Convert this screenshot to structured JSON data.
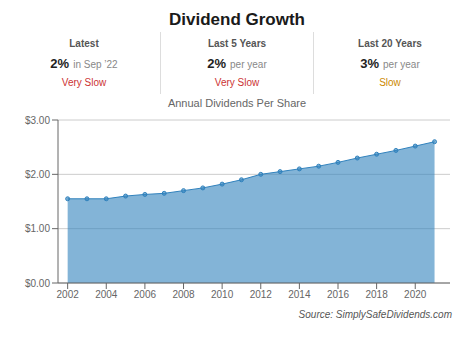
{
  "chart_data": {
    "type": "area",
    "title": "Dividend Growth",
    "subtitle": "Annual Dividends Per Share",
    "source": "Source: SimplySafeDividends.com",
    "annotations": [
      {
        "label": "Latest",
        "value": "2%",
        "detail": "in Sep ’22",
        "rating": "Very Slow",
        "color": "#cc3333"
      },
      {
        "label": "Last 5 Years",
        "value": "2%",
        "detail": "per year",
        "rating": "Very Slow",
        "color": "#cc3333"
      },
      {
        "label": "Last 20 Years",
        "value": "3%",
        "detail": "per year",
        "rating": "Slow",
        "color": "#cc8800"
      }
    ],
    "x": [
      2002,
      2003,
      2004,
      2005,
      2006,
      2007,
      2008,
      2009,
      2010,
      2011,
      2012,
      2013,
      2014,
      2015,
      2016,
      2017,
      2018,
      2019,
      2020,
      2021
    ],
    "values": [
      1.55,
      1.55,
      1.55,
      1.6,
      1.63,
      1.65,
      1.7,
      1.75,
      1.82,
      1.9,
      2.0,
      2.05,
      2.1,
      2.15,
      2.22,
      2.3,
      2.37,
      2.44,
      2.52,
      2.6
    ],
    "marker": "circle",
    "xlim": [
      2001.5,
      2021.8
    ],
    "xticks": [
      2002,
      2004,
      2006,
      2008,
      2010,
      2012,
      2014,
      2016,
      2018,
      2020
    ],
    "ylim": [
      0,
      3.0
    ],
    "yticks": [
      {
        "value": 0.0,
        "label": "$0.00"
      },
      {
        "value": 1.0,
        "label": "$1.00"
      },
      {
        "value": 2.0,
        "label": "$2.00"
      },
      {
        "value": 3.0,
        "label": "$3.00"
      }
    ],
    "grid": "y"
  }
}
